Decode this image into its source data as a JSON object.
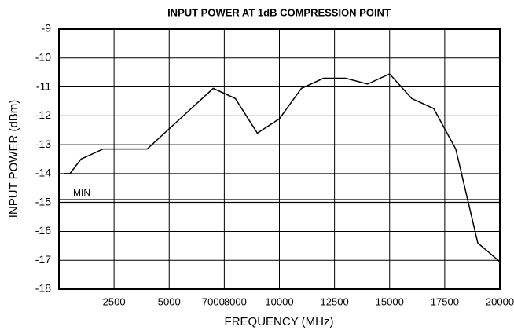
{
  "chart_data": {
    "type": "line",
    "title": "INPUT POWER AT 1dB COMPRESSION POINT",
    "xlabel": "FREQUENCY (MHz)",
    "ylabel": "INPUT POWER (dBm)",
    "x": [
      250,
      500,
      1000,
      2000,
      4000,
      7000,
      8000,
      9000,
      10000,
      11000,
      12000,
      13000,
      14000,
      15000,
      16000,
      17000,
      18000,
      19000,
      20000
    ],
    "series": [
      {
        "name": "Input power",
        "color": "#000000",
        "values": [
          -14,
          -14,
          -13.5,
          -13.15,
          -13.15,
          -11.05,
          -11.4,
          -12.6,
          -12.1,
          -11.05,
          -10.7,
          -10.7,
          -10.9,
          -10.55,
          -11.4,
          -11.75,
          -13.15,
          -16.4,
          -17.05
        ]
      }
    ],
    "xlim": [
      0,
      20000
    ],
    "xticks": [
      2500,
      5000,
      7000,
      8000,
      10000,
      12500,
      15000,
      17500,
      20000
    ],
    "xgrid": [
      2500,
      5000,
      7500,
      10000,
      12500,
      15000,
      17500
    ],
    "ylim": [
      -18,
      -9
    ],
    "yticks": [
      -9,
      -10,
      -11,
      -12,
      -13,
      -14,
      -15,
      -16,
      -17,
      -18
    ],
    "grid": true,
    "min_line": {
      "label": "MIN",
      "value": -14.95
    }
  }
}
